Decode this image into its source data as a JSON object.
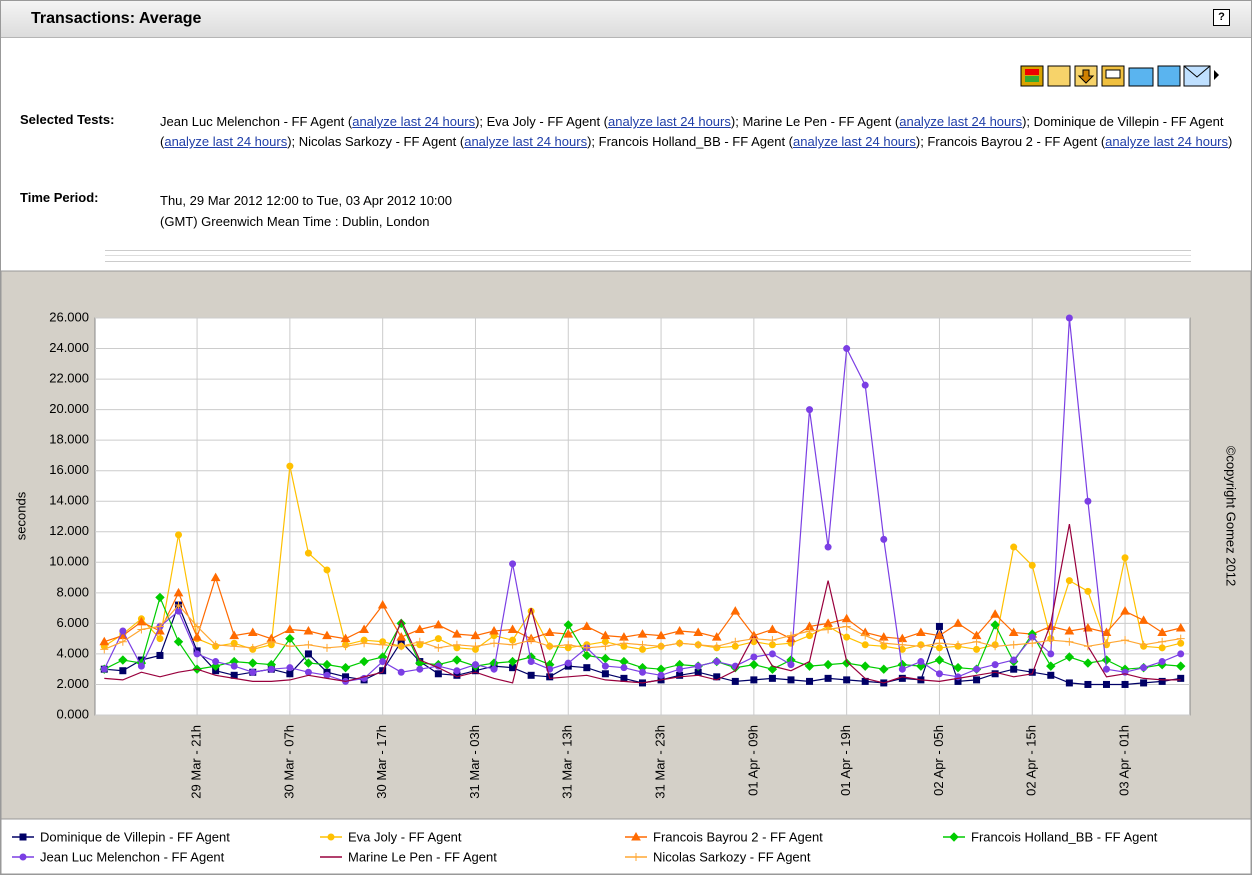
{
  "header": {
    "title": "Transactions: Average",
    "help": "?"
  },
  "selected_tests": {
    "label": "Selected Tests:",
    "items": [
      {
        "prefix": "Jean Luc Melenchon - FF Agent (",
        "link": "analyze last 24 hours",
        "suffix": "); "
      },
      {
        "prefix": "Eva Joly - FF Agent (",
        "link": "analyze last 24 hours",
        "suffix": "); "
      },
      {
        "prefix": "Marine Le Pen - FF Agent (",
        "link": "analyze last 24 hours",
        "suffix": "); "
      },
      {
        "prefix": "Dominique de Villepin - FF Agent (",
        "link": "analyze last 24 hours",
        "suffix": "); "
      },
      {
        "prefix": "Nicolas Sarkozy - FF Agent (",
        "link": "analyze last 24 hours",
        "suffix": "); "
      },
      {
        "prefix": "Francois Holland_BB - FF Agent (",
        "link": "analyze last 24 hours",
        "suffix": "); "
      },
      {
        "prefix": "Francois Bayrou 2 - FF Agent (",
        "link": "analyze last 24 hours",
        "suffix": ")"
      }
    ]
  },
  "time_period": {
    "label": "Time Period:",
    "lines": [
      "Thu, 29 Mar 2012 12:00 to Tue, 03 Apr 2012 10:00",
      "(GMT) Greenwich Mean Time : Dublin, London"
    ]
  },
  "chart_data": {
    "type": "line",
    "y_label": "seconds",
    "copyright": "©copyright Gomez 2012",
    "grid": true,
    "x": [
      null,
      null,
      null,
      null,
      null,
      "29 Mar - 21h",
      null,
      null,
      null,
      null,
      "30 Mar - 07h",
      null,
      null,
      null,
      null,
      "30 Mar - 17h",
      null,
      null,
      null,
      null,
      "31 Mar - 03h",
      null,
      null,
      null,
      null,
      "31 Mar - 13h",
      null,
      null,
      null,
      null,
      "31 Mar - 23h",
      null,
      null,
      null,
      null,
      "01 Apr - 09h",
      null,
      null,
      null,
      null,
      "01 Apr - 19h",
      null,
      null,
      null,
      null,
      "02 Apr - 05h",
      null,
      null,
      null,
      null,
      "02 Apr - 15h",
      null,
      null,
      null,
      null,
      "03 Apr - 01h",
      null,
      null,
      null
    ],
    "ylim": [
      0,
      26
    ],
    "yticks": [
      {
        "value": 0,
        "label": "0.000"
      },
      {
        "value": 2,
        "label": "2.000"
      },
      {
        "value": 4,
        "label": "4.000"
      },
      {
        "value": 6,
        "label": "6.000"
      },
      {
        "value": 8,
        "label": "8.000"
      },
      {
        "value": 10,
        "label": "10.000"
      },
      {
        "value": 12,
        "label": "12.000"
      },
      {
        "value": 14,
        "label": "14.000"
      },
      {
        "value": 16,
        "label": "16.000"
      },
      {
        "value": 18,
        "label": "18.000"
      },
      {
        "value": 20,
        "label": "20.000"
      },
      {
        "value": 22,
        "label": "22.000"
      },
      {
        "value": 24,
        "label": "24.000"
      },
      {
        "value": 26,
        "label": "26.000"
      }
    ],
    "series": [
      {
        "name": "Dominique de Villepin - FF Agent",
        "color": "#000066",
        "marker": "square",
        "values": [
          3.0,
          2.9,
          3.6,
          3.9,
          7.2,
          4.2,
          2.9,
          2.6,
          2.8,
          3.0,
          2.7,
          4.0,
          2.8,
          2.5,
          2.3,
          2.9,
          4.8,
          3.5,
          2.7,
          2.6,
          2.9,
          3.2,
          3.1,
          2.6,
          2.5,
          3.2,
          3.1,
          2.7,
          2.4,
          2.1,
          2.3,
          2.6,
          2.8,
          2.5,
          2.2,
          2.3,
          2.4,
          2.3,
          2.2,
          2.4,
          2.3,
          2.2,
          2.1,
          2.4,
          2.3,
          5.8,
          2.2,
          2.3,
          2.7,
          3.0,
          2.8,
          2.6,
          2.1,
          2.0,
          2.0,
          2.0,
          2.1,
          2.2,
          2.4
        ]
      },
      {
        "name": "Eva Joly - FF Agent",
        "color": "#ffc000",
        "marker": "circle",
        "values": [
          4.5,
          5.3,
          6.3,
          5.0,
          11.8,
          5.0,
          4.5,
          4.7,
          4.3,
          4.6,
          16.3,
          10.6,
          9.5,
          4.6,
          4.9,
          4.8,
          4.5,
          4.6,
          5.0,
          4.4,
          4.3,
          5.2,
          4.9,
          6.8,
          4.5,
          4.4,
          4.6,
          4.8,
          4.5,
          4.3,
          4.5,
          4.7,
          4.6,
          4.4,
          4.5,
          4.8,
          4.6,
          4.7,
          5.2,
          5.8,
          5.1,
          4.6,
          4.5,
          4.3,
          4.6,
          4.4,
          4.5,
          4.3,
          4.6,
          11.0,
          9.8,
          5.0,
          8.8,
          8.1,
          4.6,
          10.3,
          4.5,
          4.4,
          4.7
        ]
      },
      {
        "name": "Francois Bayrou 2 - FF Agent",
        "color": "#ff6a00",
        "marker": "triangle",
        "values": [
          4.8,
          5.2,
          6.1,
          5.5,
          8.0,
          5.1,
          9.0,
          5.2,
          5.4,
          5.0,
          5.6,
          5.5,
          5.2,
          5.0,
          5.6,
          7.2,
          5.1,
          5.6,
          5.9,
          5.3,
          5.2,
          5.5,
          5.6,
          5.0,
          5.4,
          5.3,
          5.8,
          5.2,
          5.1,
          5.3,
          5.2,
          5.5,
          5.4,
          5.1,
          6.8,
          5.2,
          5.6,
          5.0,
          5.8,
          6.0,
          6.3,
          5.4,
          5.1,
          5.0,
          5.4,
          5.2,
          6.0,
          5.2,
          6.6,
          5.4,
          5.3,
          5.8,
          5.5,
          5.7,
          5.4,
          6.8,
          6.2,
          5.4,
          5.7
        ]
      },
      {
        "name": "Francois Holland_BB - FF Agent",
        "color": "#00cc00",
        "marker": "diamond",
        "values": [
          3.0,
          3.6,
          3.4,
          7.7,
          4.8,
          3.0,
          3.2,
          3.5,
          3.4,
          3.3,
          5.0,
          3.4,
          3.3,
          3.1,
          3.5,
          3.8,
          6.0,
          3.4,
          3.3,
          3.6,
          3.2,
          3.4,
          3.5,
          3.8,
          3.3,
          5.9,
          3.9,
          3.7,
          3.5,
          3.1,
          3.0,
          3.3,
          3.2,
          3.5,
          3.1,
          3.3,
          3.0,
          3.6,
          3.2,
          3.3,
          3.4,
          3.2,
          3.0,
          3.3,
          3.2,
          3.6,
          3.1,
          3.0,
          5.9,
          3.5,
          5.3,
          3.2,
          3.8,
          3.4,
          3.6,
          3.0,
          3.1,
          3.3,
          3.2
        ]
      },
      {
        "name": "Jean Luc Melenchon - FF Agent",
        "color": "#7b3fe4",
        "marker": "circle",
        "values": [
          3.0,
          5.5,
          3.2,
          5.8,
          6.8,
          4.0,
          3.5,
          3.2,
          2.8,
          3.0,
          3.1,
          2.8,
          2.6,
          2.2,
          2.4,
          3.5,
          2.8,
          3.0,
          3.2,
          2.9,
          3.3,
          3.0,
          9.9,
          3.5,
          3.0,
          3.4,
          4.4,
          3.2,
          3.1,
          2.8,
          2.6,
          3.0,
          3.2,
          3.5,
          3.2,
          3.8,
          4.0,
          3.3,
          20.0,
          11.0,
          24.0,
          21.6,
          11.5,
          3.0,
          3.5,
          2.7,
          2.5,
          3.0,
          3.3,
          3.6,
          5.1,
          4.0,
          26.0,
          14.0,
          3.0,
          2.8,
          3.1,
          3.5,
          4.0
        ]
      },
      {
        "name": "Marine Le Pen - FF Agent",
        "color": "#99003d",
        "marker": "none",
        "values": [
          2.4,
          2.3,
          2.8,
          2.5,
          2.8,
          3.0,
          2.6,
          2.4,
          2.2,
          2.2,
          2.3,
          2.6,
          2.4,
          2.2,
          2.5,
          2.8,
          6.2,
          3.6,
          3.1,
          2.5,
          2.8,
          2.4,
          2.1,
          7.0,
          2.4,
          2.5,
          2.6,
          2.3,
          2.2,
          2.1,
          2.3,
          2.5,
          2.6,
          2.3,
          2.9,
          5.2,
          3.2,
          2.9,
          3.5,
          8.8,
          3.5,
          2.4,
          2.1,
          2.5,
          2.3,
          2.2,
          2.4,
          2.6,
          2.8,
          2.5,
          2.7,
          6.0,
          12.5,
          4.5,
          2.5,
          2.7,
          2.4,
          2.3,
          2.3
        ]
      },
      {
        "name": "Nicolas Sarkozy - FF Agent",
        "color": "#ffa733",
        "marker": "plus",
        "values": [
          4.3,
          4.8,
          5.6,
          5.8,
          7.2,
          5.8,
          4.6,
          4.5,
          4.4,
          4.8,
          4.5,
          4.6,
          4.4,
          4.5,
          4.7,
          4.6,
          4.5,
          4.8,
          4.4,
          4.6,
          4.5,
          4.7,
          4.6,
          4.9,
          4.5,
          4.6,
          4.4,
          4.5,
          4.7,
          4.6,
          4.5,
          4.7,
          4.6,
          4.5,
          4.8,
          5.0,
          4.9,
          5.2,
          5.5,
          5.6,
          5.8,
          5.2,
          4.7,
          4.6,
          4.5,
          4.7,
          4.6,
          4.8,
          4.5,
          4.6,
          4.7,
          4.9,
          4.8,
          4.5,
          4.7,
          4.9,
          4.6,
          4.8,
          5.0
        ]
      }
    ]
  }
}
